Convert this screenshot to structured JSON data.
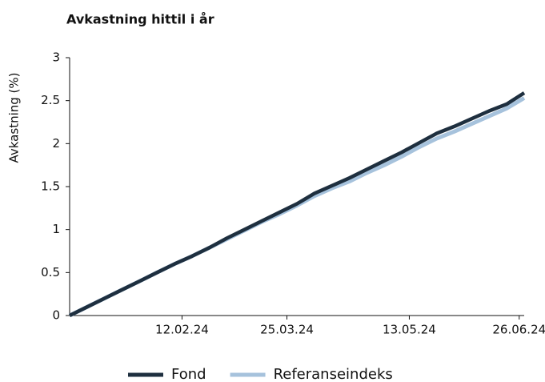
{
  "chart_data": {
    "type": "line",
    "title": "Avkastning hittil i år",
    "y_label": "Avkastning (%)",
    "x": [
      "29.12.23",
      "05.01.24",
      "12.01.24",
      "19.01.24",
      "26.01.24",
      "02.02.24",
      "09.02.24",
      "16.02.24",
      "23.02.24",
      "01.03.24",
      "08.03.24",
      "15.03.24",
      "22.03.24",
      "29.03.24",
      "05.04.24",
      "12.04.24",
      "19.04.24",
      "26.04.24",
      "03.05.24",
      "10.05.24",
      "17.05.24",
      "24.05.24",
      "31.05.24",
      "07.06.24",
      "14.06.24",
      "21.06.24",
      "28.06.24"
    ],
    "series": [
      {
        "name": "Fond",
        "color": "#1e2f3f",
        "values": [
          0,
          0.1,
          0.2,
          0.3,
          0.4,
          0.5,
          0.6,
          0.69,
          0.79,
          0.9,
          1.0,
          1.1,
          1.2,
          1.3,
          1.42,
          1.51,
          1.6,
          1.7,
          1.8,
          1.9,
          2.01,
          2.12,
          2.2,
          2.29,
          2.38,
          2.46,
          2.59
        ]
      },
      {
        "name": "Referanseindeks",
        "color": "#a6c2dc",
        "values": [
          0,
          0.1,
          0.2,
          0.3,
          0.4,
          0.5,
          0.6,
          0.69,
          0.79,
          0.89,
          0.99,
          1.09,
          1.18,
          1.28,
          1.39,
          1.48,
          1.56,
          1.66,
          1.75,
          1.85,
          1.96,
          2.06,
          2.14,
          2.23,
          2.32,
          2.41,
          2.53
        ]
      }
    ],
    "xlim": [
      "29.12.23",
      "28.06.24"
    ],
    "xticks": [
      "12.02.24",
      "25.03.24",
      "13.05.24",
      "26.06.24"
    ],
    "ylim": [
      0,
      3
    ],
    "yticks": [
      0,
      0.5,
      1,
      1.5,
      2,
      2.5,
      3
    ],
    "legend": "bottom"
  }
}
